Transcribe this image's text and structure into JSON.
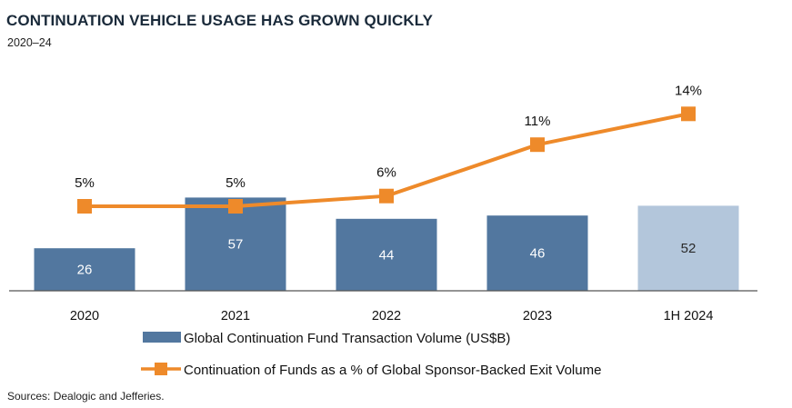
{
  "title": "CONTINUATION VEHICLE USAGE HAS GROWN QUICKLY",
  "subtitle": "2020–24",
  "source": "Sources: Dealogic and Jefferies.",
  "colors": {
    "bar": "#52779F",
    "bar_partial": "#B3C6DB",
    "line": "#EE8A2A",
    "axis": "#555555"
  },
  "chart_data": {
    "type": "bar+line",
    "categories": [
      "2020",
      "2021",
      "2022",
      "2023",
      "1H 2024"
    ],
    "series": [
      {
        "name": "Global Continuation Fund Transaction Volume (US$B)",
        "type": "bar",
        "values": [
          26,
          57,
          44,
          46,
          52
        ],
        "labels": [
          "26",
          "57",
          "44",
          "46",
          "52"
        ]
      },
      {
        "name": "Continuation of Funds as a % of Global Sponsor-Backed Exit Volume",
        "type": "line",
        "values": [
          5,
          5,
          6,
          11,
          14
        ],
        "labels": [
          "5%",
          "5%",
          "6%",
          "11%",
          "14%"
        ]
      }
    ],
    "legend_position": "bottom"
  }
}
